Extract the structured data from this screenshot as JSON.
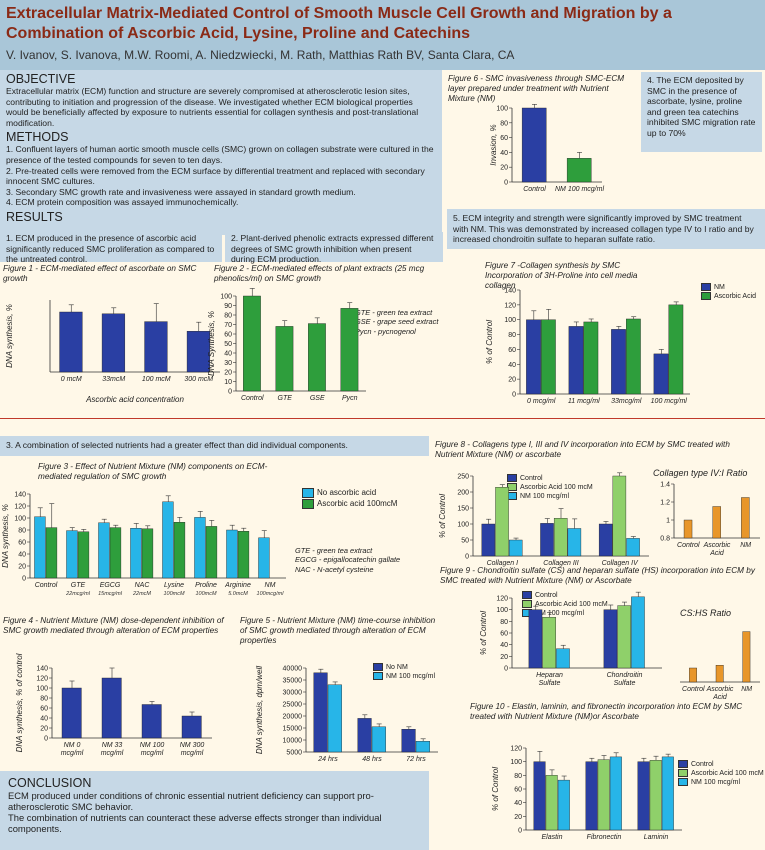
{
  "title": "Extracellular Matrix-Mediated Control of Smooth Muscle Cell Growth and Migration by a Combination of Ascorbic Acid, Lysine, Proline and Catechins",
  "authors": "V. Ivanov, S. Ivanova, M.W. Roomi, A. Niedzwiecki, M. Rath, Matthias Rath BV, Santa Clara, CA",
  "objective": {
    "heading": "OBJECTIVE",
    "text": "Extracellular matrix (ECM) function and structure are severely compromised at atherosclerotic lesion sites, contributing to initiation and progression of the disease. We investigated whether ECM biological properties would be beneficially affected by exposure to nutrients essential for collagen synthesis and post-translational modification."
  },
  "methods": {
    "heading": "METHODS",
    "items": [
      "1. Confluent layers of human aortic smooth muscle cells (SMC) grown on collagen substrate were cultured in the presence of the tested compounds for seven to ten days.",
      "2. Pre-treated cells were removed from the ECM surface by differential treatment and replaced with secondary innocent SMC cultures.",
      "3. Secondary SMC growth rate and invasiveness were assayed in standard growth medium.",
      "4. ECM protein composition was assayed immunochemically."
    ]
  },
  "results": {
    "heading": "RESULTS",
    "r1": "1. ECM produced in the presence of ascorbic acid significantly reduced SMC proliferation as compared to the untreated control.",
    "r2": "2. Plant-derived phenolic extracts expressed different degrees of SMC growth inhibition when present during ECM production.",
    "r3": "3. A combination of selected nutrients had a greater effect than did individual components.",
    "r4": "4. The ECM deposited by SMC in the presence of ascorbate, lysine, proline and green tea catechins inhibited SMC migration rate up to 70%",
    "r5": "5. ECM integrity and strength were significantly improved by SMC treatment with NM. This was demonstrated by increased collagen type IV to I ratio and by increased chondroitin sulfate to heparan sulfate ratio."
  },
  "conclusion": {
    "heading": "CONCLUSION",
    "p1": "ECM produced under conditions of chronic essential nutrient deficiency can support pro-atherosclerotic SMC behavior.",
    "p2": "The combination of nutrients can counteract these adverse effects stronger than individual components."
  },
  "colors": {
    "blue": "#2a3fa3",
    "green": "#2e9e3c",
    "cyan": "#27b5e8",
    "lightgreen": "#8fd06a",
    "orange": "#e8962a",
    "title": "#8a2a16"
  },
  "chart_data": [
    {
      "id": "fig1",
      "type": "bar",
      "title": "Figure 1 - ECM-mediated effect of ascorbate on SMC growth",
      "categories": [
        "0 mcM",
        "33mcM",
        "100 mcM",
        "300 mcM"
      ],
      "values": [
        100,
        97,
        84,
        68
      ],
      "errors": [
        12,
        10,
        30,
        15
      ],
      "ylabel": "DNA synthesis, %",
      "xlabel": "Ascorbic acid concentration",
      "ylim": [
        0,
        120
      ],
      "yticks": [],
      "colors": [
        "#2a3fa3"
      ]
    },
    {
      "id": "fig2",
      "type": "bar",
      "title": "Figure 2 - ECM-mediated effects of plant extracts (25 mcg phenolics/ml) on SMC growth",
      "categories": [
        "Control",
        "GTE",
        "GSE",
        "Pycn"
      ],
      "values": [
        100,
        68,
        71,
        87
      ],
      "errors": [
        8,
        6,
        6,
        6
      ],
      "ylabel": "DNA Synthesis, %",
      "ylim": [
        0,
        100
      ],
      "yticks": [
        0,
        10,
        20,
        30,
        40,
        50,
        60,
        70,
        80,
        90,
        100
      ],
      "colors": [
        "#2e9e3c"
      ],
      "notes": [
        "GTE - green tea extract",
        "GSE - grape seed extract",
        "Pycn - pycnogenol"
      ]
    },
    {
      "id": "fig7",
      "type": "bar",
      "title": "Figure 7 -Collagen synthesis by SMC Incorporation of 3H-Proline into cell media collagen",
      "categories": [
        "0 mcg/ml",
        "11 mcg/ml",
        "33mcg/ml",
        "100 mcg/ml"
      ],
      "series": [
        {
          "name": "NM",
          "values": [
            100,
            91,
            87,
            54
          ],
          "errors": [
            12,
            6,
            4,
            6
          ]
        },
        {
          "name": "Ascorbic Acid",
          "values": [
            100,
            97,
            101,
            120
          ],
          "errors": [
            14,
            4,
            3,
            4
          ]
        }
      ],
      "ylabel": "% of Control",
      "ylim": [
        0,
        140
      ],
      "yticks": [
        0,
        20,
        40,
        60,
        80,
        100,
        120,
        140
      ],
      "colors": [
        "#2a3fa3",
        "#2e9e3c"
      ]
    },
    {
      "id": "fig3",
      "type": "bar",
      "title": "Figure 3 - Effect of Nutrient Mixture (NM) components on ECM-mediated regulation of SMC growth",
      "categories": [
        "Control",
        "GTE",
        "EGCG",
        "NAC",
        "Lysine",
        "Proline",
        "Arginine",
        "NM"
      ],
      "sublabels": [
        "",
        "22mcg/ml",
        "15mcg/ml",
        "22mcM",
        "100mcM",
        "100mcM",
        "5.0mcM",
        "100mcg/ml"
      ],
      "series": [
        {
          "name": "No ascorbic acid",
          "values": [
            102,
            79,
            92,
            83,
            127,
            101,
            80,
            67
          ],
          "errors": [
            15,
            5,
            6,
            8,
            10,
            10,
            8,
            12
          ]
        },
        {
          "name": "Ascorbic acid 100mcM",
          "values": [
            84,
            77,
            84,
            82,
            93,
            86,
            78,
            null
          ],
          "errors": [
            40,
            4,
            4,
            5,
            8,
            10,
            5,
            null
          ]
        }
      ],
      "ylabel": "DNA synthesis, %",
      "ylim": [
        0,
        140
      ],
      "yticks": [
        0,
        20,
        40,
        60,
        80,
        100,
        120,
        140
      ],
      "colors": [
        "#27b5e8",
        "#2e9e3c"
      ],
      "notes": [
        "GTE - green tea extract",
        "EGCG - epigallocatechin gallate",
        "NAC - N-acetyl cysteine"
      ]
    },
    {
      "id": "fig4",
      "type": "bar",
      "title": "Figure 4 - Nutrient Mixture (NM) dose-dependent inhibition of SMC growth mediated through alteration of ECM properties",
      "categories": [
        "NM 0 mcg/ml",
        "NM 33 mcg/ml",
        "NM 100 mcg/ml",
        "NM 300 mcg/ml"
      ],
      "values": [
        100,
        120,
        67,
        44
      ],
      "errors": [
        14,
        20,
        6,
        8
      ],
      "ylabel": "DNA synthesis, % of control",
      "ylim": [
        0,
        140
      ],
      "yticks": [
        0,
        20,
        40,
        60,
        80,
        100,
        120,
        140
      ],
      "colors": [
        "#2a3fa3"
      ]
    },
    {
      "id": "fig5",
      "type": "bar",
      "title": "Figure 5 - Nutrient Mixture (NM) time-course inhibition of SMC growth mediated through alteration of ECM properties",
      "categories": [
        "24 hrs",
        "48 hrs",
        "72 hrs"
      ],
      "series": [
        {
          "name": "No NM",
          "values": [
            38000,
            19000,
            14500
          ],
          "errors": [
            1500,
            1500,
            1000
          ]
        },
        {
          "name": "NM 100 mcg/ml",
          "values": [
            33000,
            15500,
            9500
          ],
          "errors": [
            1200,
            1200,
            1000
          ]
        }
      ],
      "ylabel": "DNA synthesis, dpm/well",
      "ylim": [
        5000,
        40000
      ],
      "yticks": [
        5000,
        10000,
        15000,
        20000,
        25000,
        30000,
        35000,
        40000
      ],
      "colors": [
        "#2a3fa3",
        "#27b5e8"
      ]
    },
    {
      "id": "fig6",
      "type": "bar",
      "title": "Figure 6 - SMC invasiveness through SMC-ECM layer prepared under treatment with Nutrient Mixture (NM)",
      "categories": [
        "Control",
        "NM 100 mcg/ml"
      ],
      "values": [
        100,
        32
      ],
      "errors": [
        5,
        8
      ],
      "ylabel": "Invasion, %",
      "ylim": [
        0,
        100
      ],
      "yticks": [
        0,
        20,
        40,
        60,
        80,
        100
      ],
      "colors": [
        "#2a3fa3",
        "#2e9e3c"
      ]
    },
    {
      "id": "fig8",
      "type": "bar",
      "title": "Figure 8 - Collagens type I, III and IV incorporation into ECM by SMC treated with Nutrient Mixture (NM) or ascorbate",
      "categories": [
        "Collagen I",
        "Collagen III",
        "Collagen IV"
      ],
      "series": [
        {
          "name": "Control",
          "values": [
            100,
            102,
            100
          ],
          "errors": [
            15,
            15,
            8
          ]
        },
        {
          "name": "Ascorbic Acid 100 mcM",
          "values": [
            215,
            118,
            250
          ],
          "errors": [
            8,
            30,
            10
          ]
        },
        {
          "name": "NM 100 mcg/ml",
          "values": [
            50,
            86,
            55
          ],
          "errors": [
            6,
            30,
            6
          ]
        }
      ],
      "ylabel": "% of Control",
      "ylim": [
        0,
        250
      ],
      "yticks": [
        0,
        50,
        100,
        150,
        200,
        250
      ],
      "colors": [
        "#2a3fa3",
        "#8fd06a",
        "#27b5e8"
      ]
    },
    {
      "id": "fig8b",
      "type": "bar",
      "title": "Collagen type IV:I Ratio",
      "categories": [
        "Control",
        "Ascorbic Acid",
        "NM"
      ],
      "values": [
        1.0,
        1.15,
        1.25
      ],
      "ylim": [
        0.8,
        1.4
      ],
      "yticks": [
        0.8,
        1,
        1.2,
        1.4
      ],
      "colors": [
        "#e8962a"
      ]
    },
    {
      "id": "fig9",
      "type": "bar",
      "title": "Figure 9 - Chondroitin sulfate (CS) and heparan sulfate (HS) incorporation into ECM by SMC treated with Nutrient Mixture (NM) or Ascorbate",
      "categories": [
        "Heparan Sulfate",
        "Chondroitin Sulfate"
      ],
      "series": [
        {
          "name": "Control",
          "values": [
            100,
            100
          ],
          "errors": [
            6,
            8
          ]
        },
        {
          "name": "Ascorbic Acid 100 mcM",
          "values": [
            87,
            107
          ],
          "errors": [
            8,
            6
          ]
        },
        {
          "name": "NM 100 mcg/ml",
          "values": [
            33,
            122
          ],
          "errors": [
            6,
            8
          ]
        }
      ],
      "ylabel": "% of Control",
      "ylim": [
        0,
        120
      ],
      "yticks": [
        0,
        20,
        40,
        60,
        80,
        100,
        120
      ],
      "colors": [
        "#2a3fa3",
        "#8fd06a",
        "#27b5e8"
      ]
    },
    {
      "id": "fig9b",
      "type": "bar",
      "title": "CS:HS Ratio",
      "categories": [
        "Control",
        "Ascorbic Acid",
        "NM"
      ],
      "values": [
        1.0,
        1.2,
        3.6
      ],
      "ylim": [
        0,
        4
      ],
      "yticks": [],
      "colors": [
        "#e8962a"
      ]
    },
    {
      "id": "fig10",
      "type": "bar",
      "title": "Figure 10 - Elastin, laminin, and fibronectin incorporation into ECM by SMC treated with Nutrient Mixture (NM)or Ascorbate",
      "categories": [
        "Elastin",
        "Fibronectin",
        "Laminin"
      ],
      "series": [
        {
          "name": "Control",
          "values": [
            100,
            100,
            100
          ],
          "errors": [
            15,
            5,
            5
          ]
        },
        {
          "name": "Ascorbic Acid 100 mcM",
          "values": [
            80,
            103,
            102
          ],
          "errors": [
            8,
            6,
            6
          ]
        },
        {
          "name": "NM 100 mcg/ml",
          "values": [
            73,
            107,
            107
          ],
          "errors": [
            6,
            6,
            4
          ]
        }
      ],
      "ylabel": "% of Control",
      "ylim": [
        0,
        120
      ],
      "yticks": [
        0,
        20,
        40,
        60,
        80,
        100,
        120
      ],
      "colors": [
        "#2a3fa3",
        "#8fd06a",
        "#27b5e8"
      ]
    }
  ]
}
